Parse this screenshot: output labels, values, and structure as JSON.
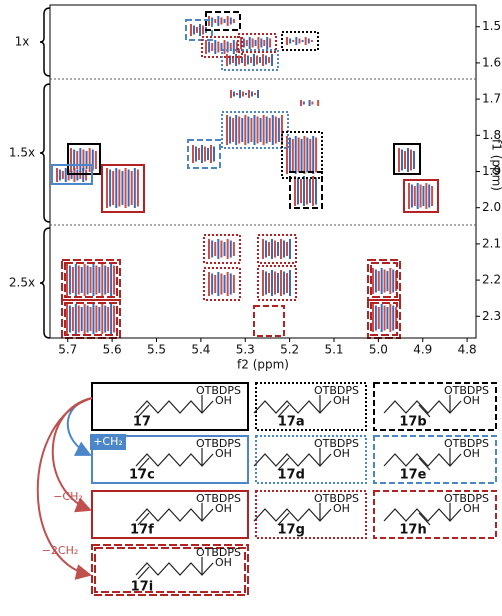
{
  "spectrum": {
    "x_label": "f2 (ppm)",
    "y_label": "f1 (ppm)",
    "xlim": [
      5.74,
      4.78
    ],
    "xticks": [
      5.7,
      5.6,
      5.5,
      5.4,
      5.3,
      5.2,
      5.1,
      {
        "value": 5,
        "label": "5.0"
      },
      4.9,
      4.8
    ],
    "ylim": [
      1.44,
      2.36
    ],
    "yticks": [
      1.5,
      1.6,
      1.7,
      1.8,
      1.9,
      {
        "value": 2,
        "label": "2.0"
      },
      2.1,
      2.2,
      2.3
    ],
    "scale_labels": [
      "1x",
      "1.5x",
      "2.5x"
    ]
  },
  "compounds": [
    {
      "label": "17",
      "oxy": "OTBDPS",
      "hydroxyl": "OH"
    },
    {
      "label": "17a",
      "oxy": "OTBDPS",
      "hydroxyl": "OH"
    },
    {
      "label": "17b",
      "oxy": "OTBDPS",
      "hydroxyl": "OH"
    },
    {
      "label": "17c",
      "oxy": "OTBDPS",
      "hydroxyl": "OH"
    },
    {
      "label": "17d",
      "oxy": "OTBDPS",
      "hydroxyl": "OH"
    },
    {
      "label": "17e",
      "oxy": "OTBDPS",
      "hydroxyl": "OH"
    },
    {
      "label": "17f",
      "oxy": "OTBDPS",
      "hydroxyl": "OH"
    },
    {
      "label": "17g",
      "oxy": "OTBDPS",
      "hydroxyl": "OH"
    },
    {
      "label": "17h",
      "oxy": "OTBDPS",
      "hydroxyl": "OH"
    },
    {
      "label": "17i",
      "oxy": "OTBDPS",
      "hydroxyl": "OH"
    }
  ],
  "arrows": [
    "+CH₂",
    "−CH₂",
    "−2CH₂"
  ]
}
